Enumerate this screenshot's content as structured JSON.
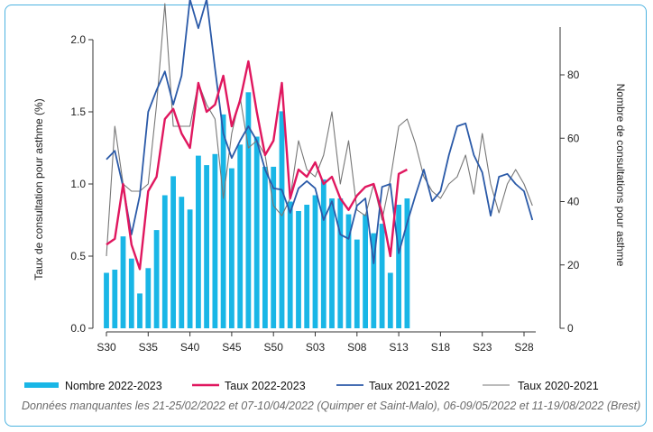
{
  "note": "Données manquantes les 21-25/02/2022 et 07-10/04/2022 (Quimper et Saint-Malo), 06-09/05/2022 et 11-19/08/2022 (Brest)",
  "chart_data": {
    "type": "bar+line",
    "x_ticks": [
      "S30",
      "S35",
      "S40",
      "S45",
      "S50",
      "S03",
      "S08",
      "S13",
      "S18",
      "S23",
      "S28"
    ],
    "week_range": [
      "S30",
      "S29"
    ],
    "ylabel_left": "Taux de consultation pour asthme (%)",
    "ylabel_right": "Nombre de consultations pour asthme",
    "yticks_left": [
      "0.0",
      "0.5",
      "1.0",
      "1.5",
      "2.0"
    ],
    "yticks_right": [
      "0",
      "20",
      "40",
      "60",
      "80"
    ],
    "ylim_left": [
      0,
      2.0
    ],
    "ylim_right": [
      0,
      80
    ],
    "colors": {
      "bars": "#19b6e6",
      "taux_2022_2023": "#e0175f",
      "taux_2021_2022": "#2b5aa8",
      "taux_2020_2021": "#777777"
    },
    "legend": [
      "Nombre 2022-2023",
      "Taux 2022-2023",
      "Taux 2021-2022",
      "Taux 2020-2021"
    ],
    "series": [
      {
        "name": "Nombre 2022-2023",
        "axis": "right",
        "kind": "bar",
        "values": [
          17.5,
          18.5,
          29,
          22,
          11,
          19,
          31,
          42,
          48,
          41.5,
          37.5,
          54.5,
          51.5,
          55,
          67.5,
          50.5,
          58,
          74.5,
          60.5,
          51,
          51,
          68.5,
          40,
          37,
          39,
          42,
          47,
          41,
          41,
          36,
          28,
          36,
          30,
          33,
          17.5,
          39,
          41
        ]
      },
      {
        "name": "Taux 2022-2023",
        "axis": "left",
        "kind": "line",
        "values": [
          0.58,
          0.62,
          1.0,
          0.58,
          0.41,
          0.95,
          1.05,
          1.45,
          1.52,
          1.35,
          1.25,
          1.7,
          1.5,
          1.55,
          1.75,
          1.4,
          1.58,
          1.85,
          1.5,
          1.2,
          1.3,
          1.7,
          0.9,
          1.1,
          1.05,
          1.15,
          1.0,
          1.05,
          0.9,
          0.82,
          0.92,
          0.98,
          1.0,
          0.8,
          0.5,
          1.07,
          1.1
        ]
      },
      {
        "name": "Taux 2021-2022",
        "axis": "left",
        "kind": "line",
        "values": [
          1.17,
          1.23,
          0.98,
          0.65,
          0.92,
          1.5,
          1.65,
          1.78,
          1.55,
          1.75,
          2.28,
          2.08,
          2.28,
          1.8,
          1.35,
          1.18,
          1.3,
          1.4,
          1.3,
          1.1,
          0.97,
          0.96,
          0.8,
          0.97,
          1.02,
          0.97,
          0.75,
          0.88,
          0.65,
          0.62,
          0.85,
          0.9,
          0.45,
          0.98,
          1.0,
          0.52,
          0.73,
          0.92,
          1.1,
          0.88,
          0.95,
          1.2,
          1.4,
          1.42,
          1.2,
          1.08,
          0.78,
          1.05,
          1.07,
          1.0,
          0.95,
          0.75
        ]
      },
      {
        "name": "Taux 2020-2021",
        "axis": "left",
        "kind": "line",
        "values": [
          0.5,
          1.4,
          1.0,
          0.95,
          0.95,
          1.0,
          1.55,
          2.25,
          1.4,
          1.4,
          1.4,
          1.7,
          1.55,
          1.45,
          0.9,
          1.35,
          1.6,
          1.25,
          1.3,
          1.2,
          0.85,
          0.78,
          0.9,
          1.3,
          1.1,
          1.05,
          1.2,
          1.5,
          1.0,
          1.3,
          0.82,
          0.78,
          1.0,
          0.75,
          1.03,
          1.4,
          1.45,
          1.28,
          1.05,
          0.95,
          0.9,
          1.0,
          1.05,
          1.2,
          0.93,
          1.35,
          1.0,
          0.8,
          1.0,
          1.1,
          1.0,
          0.85
        ]
      }
    ]
  }
}
